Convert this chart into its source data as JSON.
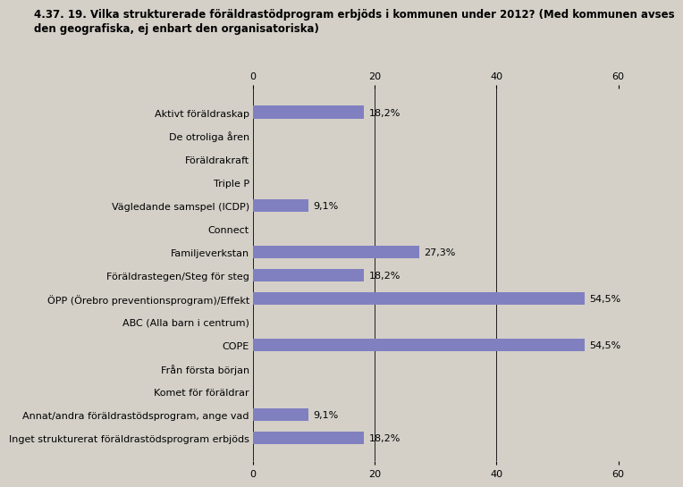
{
  "title_line1": "4.37. 19. Vilka strukturerade föräldrastödprogram erbjöds i kommunen under 2012? (Med kommunen avses",
  "title_line2": "den geografiska, ej enbart den organisatoriska)",
  "categories": [
    "Aktivt föräldraskap",
    "De otroliga åren",
    "Föräldrakraft",
    "Triple P",
    "Vägledande samspel (ICDP)",
    "Connect",
    "Familjeverkstan",
    "Föräldrastegen/Steg för steg",
    "ÖPP (Örebro preventionsprogram)/Effekt",
    "ABC (Alla barn i centrum)",
    "COPE",
    "Från första början",
    "Komet för föräldrar",
    "Annat/andra föräldrastödsprogram, ange vad",
    "Inget strukturerat föräldrastödsprogram erbjöds"
  ],
  "values": [
    18.2,
    0,
    0,
    0,
    9.1,
    0,
    27.3,
    18.2,
    54.5,
    0,
    54.5,
    0,
    0,
    9.1,
    18.2
  ],
  "bar_color": "#8080c0",
  "background_color": "#d4d0c8",
  "plot_bg_color": "#d4d0c8",
  "xlim": [
    0,
    60
  ],
  "xticks": [
    0,
    20,
    40,
    60
  ],
  "title_fontsize": 8.5,
  "label_fontsize": 8,
  "tick_fontsize": 8,
  "bar_labels": [
    "18,2%",
    "",
    "",
    "",
    "9,1%",
    "",
    "27,3%",
    "18,2%",
    "54,5%",
    "",
    "54,5%",
    "",
    "",
    "9,1%",
    "18,2%"
  ],
  "bar_height": 0.55
}
